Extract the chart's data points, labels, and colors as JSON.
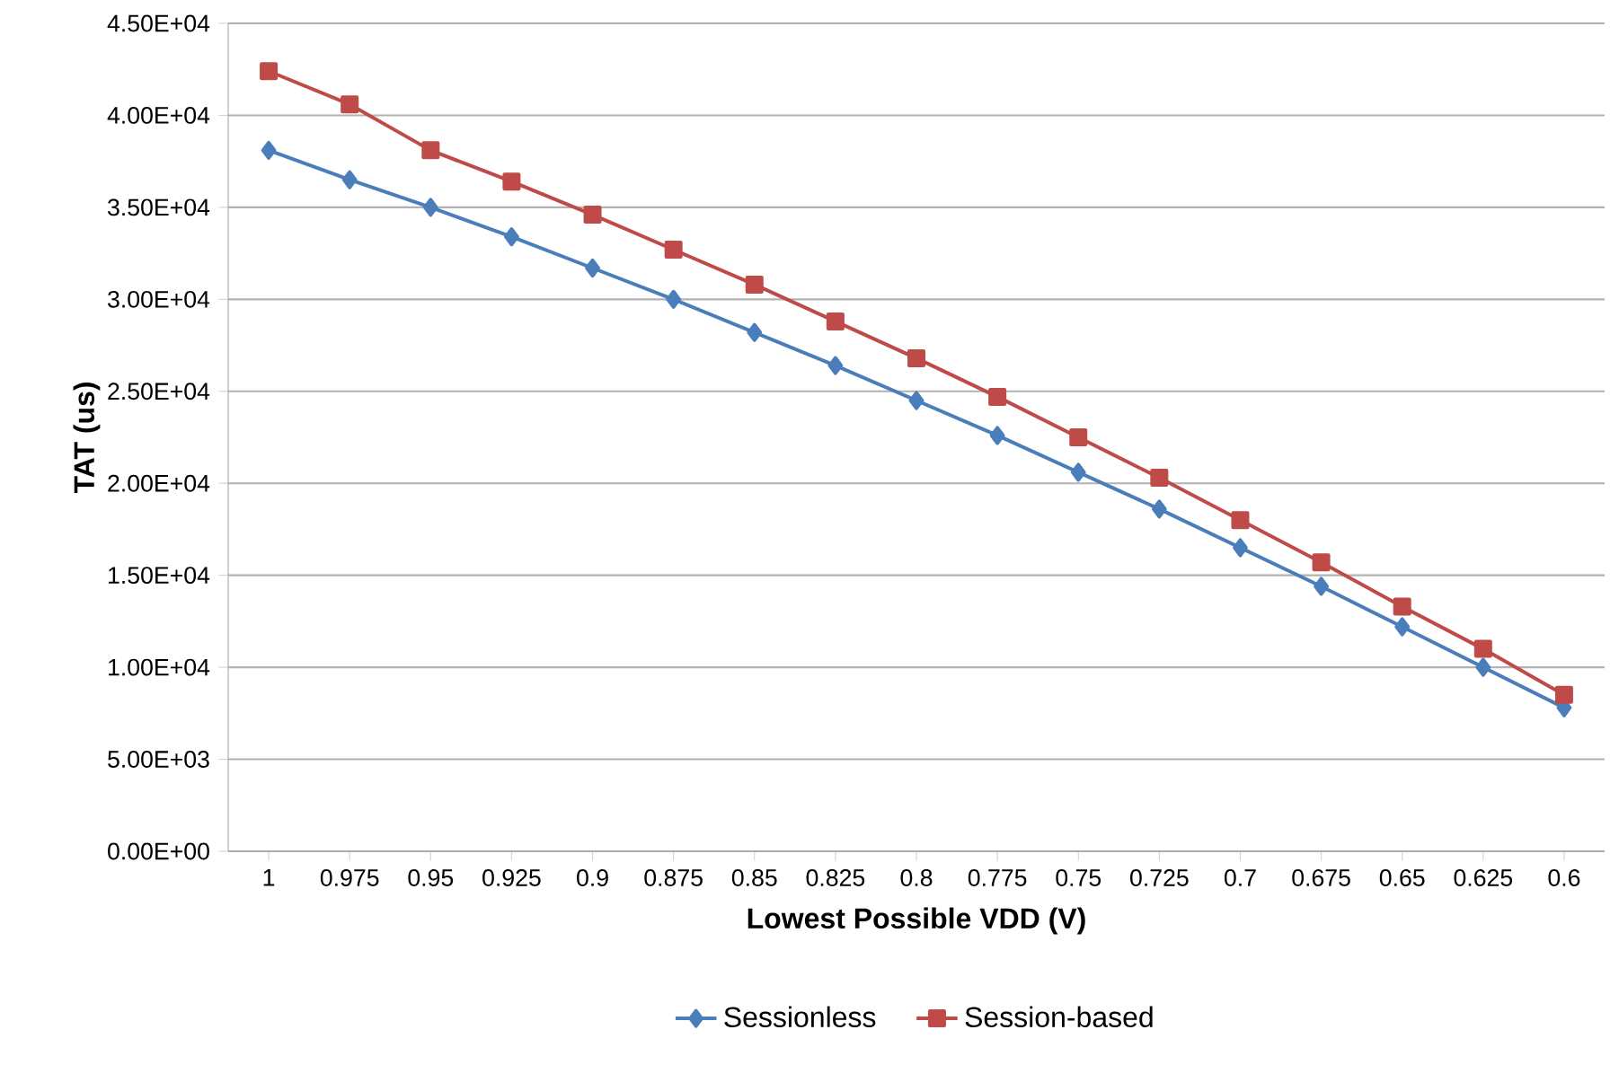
{
  "chart_data": {
    "type": "line",
    "xlabel": "Lowest Possible VDD (V)",
    "ylabel": "TAT (us)",
    "categories": [
      "1",
      "0.975",
      "0.95",
      "0.925",
      "0.9",
      "0.875",
      "0.85",
      "0.825",
      "0.8",
      "0.775",
      "0.75",
      "0.725",
      "0.7",
      "0.675",
      "0.65",
      "0.625",
      "0.6"
    ],
    "series": [
      {
        "name": "Sessionless",
        "color": "#4a7ebb",
        "marker": "diamond",
        "values": [
          38100,
          36500,
          35000,
          33400,
          31700,
          30000,
          28200,
          26400,
          24500,
          22600,
          20600,
          18600,
          16500,
          14400,
          12200,
          10000,
          7800
        ]
      },
      {
        "name": "Session-based",
        "color": "#be4b48",
        "marker": "square",
        "values": [
          42400,
          40600,
          38100,
          36400,
          34600,
          32700,
          30800,
          28800,
          26800,
          24700,
          22500,
          20300,
          18000,
          15700,
          13300,
          11000,
          8500
        ]
      }
    ],
    "ylim": [
      0,
      45000
    ],
    "yticks": [
      {
        "value": 0,
        "label": "0.00E+00"
      },
      {
        "value": 5000,
        "label": "5.00E+03"
      },
      {
        "value": 10000,
        "label": "1.00E+04"
      },
      {
        "value": 15000,
        "label": "1.50E+04"
      },
      {
        "value": 20000,
        "label": "2.00E+04"
      },
      {
        "value": 25000,
        "label": "2.50E+04"
      },
      {
        "value": 30000,
        "label": "3.00E+04"
      },
      {
        "value": 35000,
        "label": "3.50E+04"
      },
      {
        "value": 40000,
        "label": "4.00E+04"
      },
      {
        "value": 45000,
        "label": "4.50E+04"
      }
    ],
    "grid": "y",
    "legend": "bottom",
    "line_style": "solid"
  }
}
